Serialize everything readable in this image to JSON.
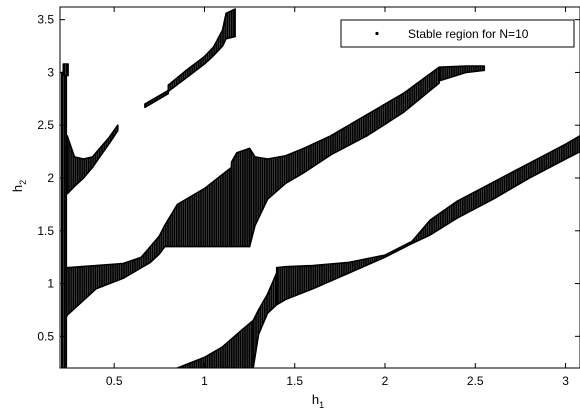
{
  "chart_data": {
    "type": "scatter",
    "title": "",
    "xlabel": "h",
    "xlabel_sub": "1",
    "ylabel": "h",
    "ylabel_sub": "2",
    "xlim": [
      0.2,
      3.08
    ],
    "ylim": [
      0.2,
      3.62
    ],
    "xticks": [
      0.5,
      1,
      1.5,
      2,
      2.5,
      3
    ],
    "xtick_labels": [
      "0.5",
      "1",
      "1.5",
      "2",
      "2.5",
      "3"
    ],
    "yticks": [
      0.5,
      1,
      1.5,
      2,
      2.5,
      3,
      3.5
    ],
    "ytick_labels": [
      "0.5",
      "1",
      "1.5",
      "2",
      "2.5",
      "3",
      "3.5"
    ],
    "grid": false,
    "legend_position": "top-right",
    "series": [
      {
        "name": "Stable region for N=10",
        "marker": "dot",
        "color": "#000000",
        "regions": [
          {
            "x": [
              0.21,
              0.24,
              0.4,
              0.55,
              0.65,
              0.7,
              0.75,
              0.78,
              0.85,
              1.0,
              1.15
            ],
            "lower": [
              0.6,
              0.7,
              0.95,
              1.05,
              1.15,
              1.2,
              1.28,
              1.35,
              1.35,
              1.35,
              1.35
            ],
            "upper": [
              1.0,
              1.15,
              1.17,
              1.19,
              1.25,
              1.35,
              1.45,
              1.55,
              1.75,
              1.9,
              2.1
            ]
          },
          {
            "x": [
              1.15,
              1.18,
              1.25
            ],
            "lower": [
              1.35,
              1.35,
              1.35
            ],
            "upper": [
              2.15,
              2.24,
              2.28
            ]
          },
          {
            "x": [
              1.25,
              1.28,
              1.35,
              1.45,
              1.55,
              1.7,
              1.9,
              2.1,
              2.3
            ],
            "lower": [
              1.35,
              1.55,
              1.8,
              1.95,
              2.05,
              2.22,
              2.4,
              2.62,
              2.9
            ],
            "upper": [
              2.28,
              2.2,
              2.18,
              2.21,
              2.28,
              2.4,
              2.6,
              2.8,
              3.05
            ]
          },
          {
            "x": [
              2.3,
              2.45,
              2.55
            ],
            "lower": [
              2.92,
              3.0,
              3.02
            ],
            "upper": [
              3.05,
              3.06,
              3.06
            ]
          },
          {
            "x": [
              0.24,
              0.28,
              0.33,
              0.38,
              0.42,
              0.47,
              0.52
            ],
            "lower": [
              1.85,
              1.92,
              2.0,
              2.1,
              2.2,
              2.32,
              2.45
            ],
            "upper": [
              2.4,
              2.2,
              2.18,
              2.2,
              2.28,
              2.38,
              2.5
            ]
          },
          {
            "x": [
              0.67,
              0.72,
              0.8
            ],
            "lower": [
              2.67,
              2.72,
              2.8
            ],
            "upper": [
              2.7,
              2.75,
              2.83
            ]
          },
          {
            "x": [
              0.8,
              0.9,
              1.0,
              1.05,
              1.1,
              1.12,
              1.17
            ],
            "lower": [
              2.82,
              2.95,
              3.08,
              3.16,
              3.25,
              3.32,
              3.34
            ],
            "upper": [
              2.88,
              3.02,
              3.15,
              3.24,
              3.4,
              3.56,
              3.6
            ]
          },
          {
            "x": [
              0.21,
              0.235
            ],
            "lower": [
              0.2,
              0.2
            ],
            "upper": [
              3.0,
              3.0
            ]
          },
          {
            "x": [
              0.218,
              0.245
            ],
            "lower": [
              2.97,
              2.97
            ],
            "upper": [
              3.08,
              3.08
            ]
          },
          {
            "x": [
              0.85,
              1.0,
              1.1,
              1.2,
              1.27
            ],
            "lower": [
              0.2,
              0.2,
              0.2,
              0.2,
              0.2
            ],
            "upper": [
              0.2,
              0.3,
              0.4,
              0.55,
              0.65
            ]
          },
          {
            "x": [
              1.27,
              1.3,
              1.35,
              1.4
            ],
            "lower": [
              0.2,
              0.52,
              0.72,
              0.8
            ],
            "upper": [
              0.65,
              0.75,
              0.9,
              1.1
            ]
          },
          {
            "x": [
              1.4,
              1.45,
              1.6,
              1.8,
              2.0,
              2.15
            ],
            "lower": [
              0.8,
              0.85,
              0.95,
              1.1,
              1.25,
              1.38
            ],
            "upper": [
              1.15,
              1.16,
              1.17,
              1.2,
              1.27,
              1.4
            ]
          },
          {
            "x": [
              2.15,
              2.25,
              2.4,
              2.6,
              2.8,
              3.0,
              3.08
            ],
            "lower": [
              1.38,
              1.46,
              1.62,
              1.8,
              2.0,
              2.18,
              2.25
            ],
            "upper": [
              1.4,
              1.6,
              1.78,
              1.96,
              2.14,
              2.32,
              2.4
            ]
          }
        ]
      }
    ]
  }
}
